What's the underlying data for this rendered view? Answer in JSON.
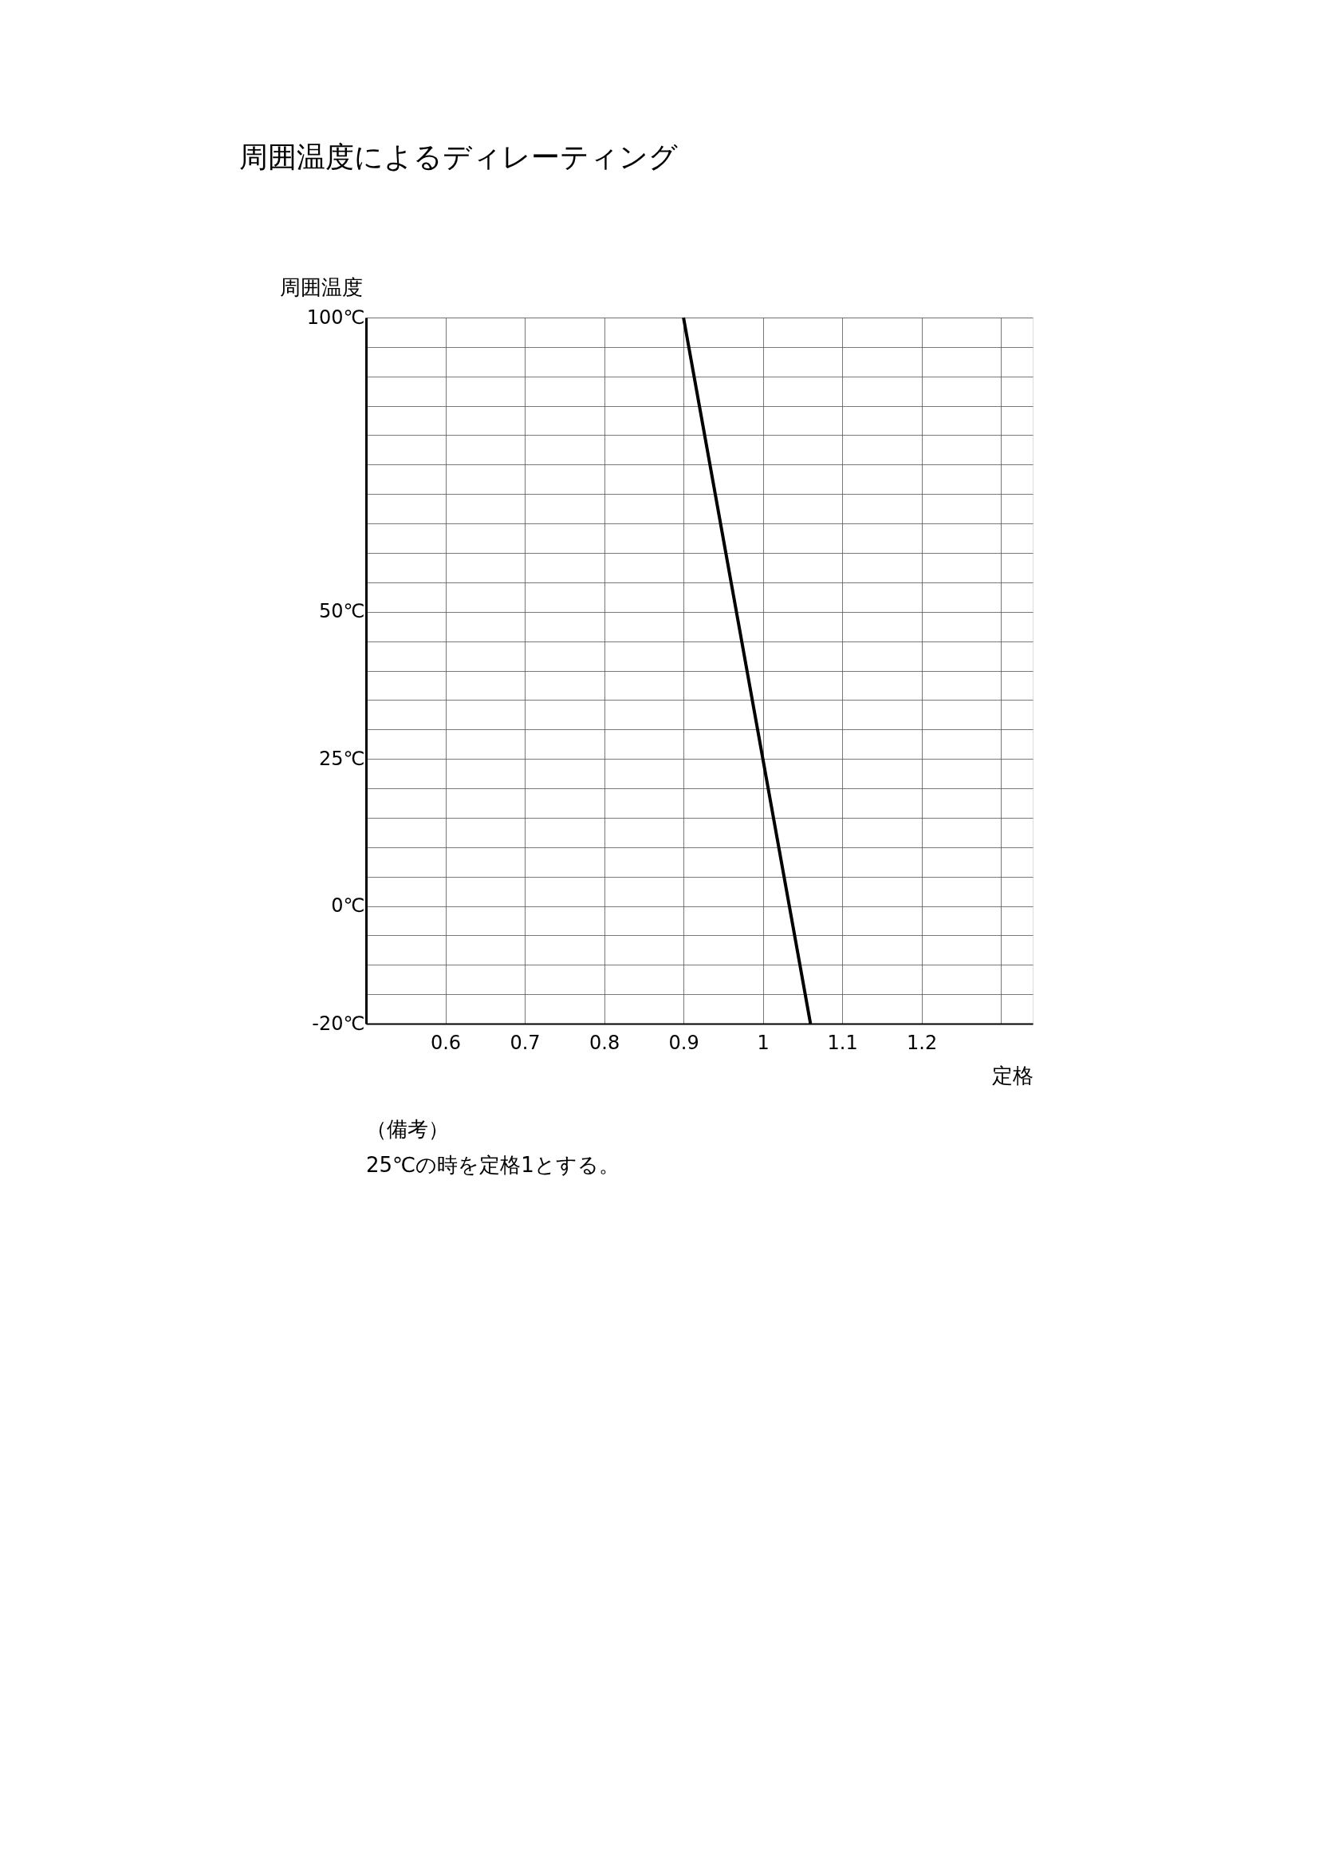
{
  "chart_data": {
    "type": "line",
    "title": "周囲温度によるディレーティング",
    "xlabel": "定格",
    "ylabel": "周囲温度",
    "series": [
      {
        "color": "#000000",
        "x": [
          0.9,
          1.0,
          1.06
        ],
        "values": [
          100,
          25,
          -20
        ]
      }
    ],
    "xlim": [
      0.5,
      1.34
    ],
    "ylim": [
      -20,
      100
    ],
    "xticks": [
      0.6,
      0.7,
      0.8,
      0.9,
      1,
      1.1,
      1.2,
      {
        "value": 1.3,
        "label": null
      }
    ],
    "yticks": [
      {
        "value": -20,
        "label": "-20℃"
      },
      {
        "value": -15,
        "label": null
      },
      {
        "value": -10,
        "label": null
      },
      {
        "value": -5,
        "label": null
      },
      {
        "value": 0,
        "label": "0℃"
      },
      {
        "value": 5,
        "label": null
      },
      {
        "value": 10,
        "label": null
      },
      {
        "value": 15,
        "label": null
      },
      {
        "value": 20,
        "label": null
      },
      {
        "value": 25,
        "label": "25℃"
      },
      {
        "value": 30,
        "label": null
      },
      {
        "value": 35,
        "label": null
      },
      {
        "value": 40,
        "label": null
      },
      {
        "value": 45,
        "label": null
      },
      {
        "value": 50,
        "label": "50℃"
      },
      {
        "value": 55,
        "label": null
      },
      {
        "value": 60,
        "label": null
      },
      {
        "value": 65,
        "label": null
      },
      {
        "value": 70,
        "label": null
      },
      {
        "value": 75,
        "label": null
      },
      {
        "value": 80,
        "label": null
      },
      {
        "value": 85,
        "label": null
      },
      {
        "value": 90,
        "label": null
      },
      {
        "value": 95,
        "label": null
      },
      {
        "value": 100,
        "label": "100℃"
      }
    ],
    "grid": true,
    "line_style": "solid",
    "marker": "none",
    "annotations": [
      "（備考）",
      "25℃の時を定格1とする。"
    ]
  }
}
